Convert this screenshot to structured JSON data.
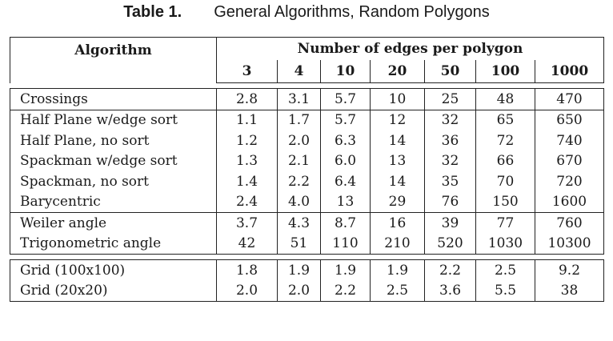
{
  "caption": {
    "label": "Table 1.",
    "title": "General Algorithms, Random Polygons"
  },
  "table": {
    "header_algorithm": "Algorithm",
    "header_group": "Number of edges per polygon",
    "columns": [
      "3",
      "4",
      "10",
      "20",
      "50",
      "100",
      "1000"
    ],
    "groups": [
      [
        {
          "name": "Crossings",
          "values": [
            "2.8",
            "3.1",
            "5.7",
            "10",
            "25",
            "48",
            "470"
          ]
        }
      ],
      [
        {
          "name": "Half Plane w/edge sort",
          "values": [
            "1.1",
            "1.7",
            "5.7",
            "12",
            "32",
            "65",
            "650"
          ]
        },
        {
          "name": "Half Plane, no sort",
          "values": [
            "1.2",
            "2.0",
            "6.3",
            "14",
            "36",
            "72",
            "740"
          ]
        },
        {
          "name": "Spackman w/edge sort",
          "values": [
            "1.3",
            "2.1",
            "6.0",
            "13",
            "32",
            "66",
            "670"
          ]
        },
        {
          "name": "Spackman, no sort",
          "values": [
            "1.4",
            "2.2",
            "6.4",
            "14",
            "35",
            "70",
            "720"
          ]
        },
        {
          "name": "Barycentric",
          "values": [
            "2.4",
            "4.0",
            "13",
            "29",
            "76",
            "150",
            "1600"
          ]
        }
      ],
      [
        {
          "name": "Weiler angle",
          "values": [
            "3.7",
            "4.3",
            "8.7",
            "16",
            "39",
            "77",
            "760"
          ]
        },
        {
          "name": "Trigonometric angle",
          "values": [
            "42",
            "51",
            "110",
            "210",
            "520",
            "1030",
            "10300"
          ]
        }
      ],
      [
        {
          "name": "Grid (100x100)",
          "values": [
            "1.8",
            "1.9",
            "1.9",
            "1.9",
            "2.2",
            "2.5",
            "9.2"
          ]
        },
        {
          "name": "Grid (20x20)",
          "values": [
            "2.0",
            "2.0",
            "2.2",
            "2.5",
            "3.6",
            "5.5",
            "38"
          ]
        }
      ]
    ]
  }
}
